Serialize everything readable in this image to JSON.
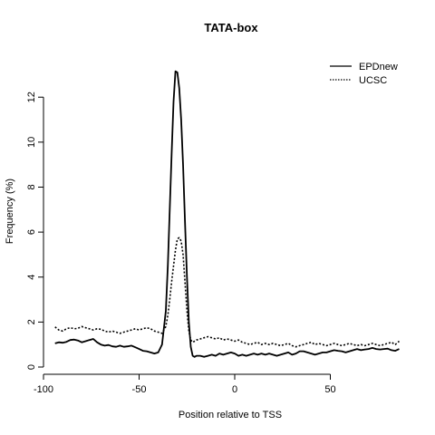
{
  "chart_data": {
    "type": "line",
    "title": "TATA-box",
    "xlabel": "Position relative to TSS",
    "ylabel": "Frequency (%)",
    "xlim": [
      -100,
      100
    ],
    "ylim": [
      0,
      13.5
    ],
    "x_ticks": [
      -100,
      -50,
      0,
      50
    ],
    "y_ticks": [
      0,
      2,
      4,
      6,
      8,
      10,
      12
    ],
    "legend_position": "top-right",
    "grid": false,
    "series": [
      {
        "name": "EPDnew",
        "style": "solid",
        "color": "#000000",
        "x": [
          -94,
          -92,
          -90,
          -88,
          -86,
          -84,
          -82,
          -80,
          -78,
          -76,
          -74,
          -72,
          -70,
          -68,
          -66,
          -64,
          -62,
          -60,
          -58,
          -56,
          -54,
          -52,
          -50,
          -48,
          -46,
          -44,
          -42,
          -40,
          -38,
          -36,
          -35,
          -34,
          -33,
          -32,
          -31,
          -30,
          -29,
          -28,
          -27,
          -26,
          -25,
          -24,
          -23,
          -22,
          -21,
          -20,
          -18,
          -16,
          -14,
          -12,
          -10,
          -8,
          -6,
          -4,
          -2,
          0,
          2,
          4,
          6,
          8,
          10,
          12,
          14,
          16,
          18,
          20,
          22,
          24,
          26,
          28,
          30,
          32,
          34,
          36,
          38,
          40,
          42,
          44,
          46,
          48,
          50,
          52,
          54,
          56,
          58,
          60,
          62,
          64,
          66,
          68,
          70,
          72,
          74,
          76,
          78,
          80,
          82,
          84,
          86
        ],
        "y": [
          1.05,
          1.1,
          1.08,
          1.12,
          1.2,
          1.22,
          1.18,
          1.1,
          1.15,
          1.2,
          1.25,
          1.1,
          1.0,
          0.95,
          0.98,
          0.92,
          0.9,
          0.95,
          0.9,
          0.92,
          0.95,
          0.88,
          0.8,
          0.72,
          0.7,
          0.65,
          0.6,
          0.65,
          1.0,
          2.5,
          4.5,
          7.0,
          9.5,
          11.8,
          13.15,
          13.1,
          12.4,
          11.0,
          9.0,
          6.5,
          4.0,
          2.0,
          0.9,
          0.5,
          0.45,
          0.5,
          0.5,
          0.45,
          0.5,
          0.55,
          0.5,
          0.6,
          0.55,
          0.6,
          0.65,
          0.6,
          0.5,
          0.55,
          0.5,
          0.55,
          0.6,
          0.55,
          0.6,
          0.55,
          0.6,
          0.55,
          0.5,
          0.55,
          0.6,
          0.65,
          0.55,
          0.6,
          0.7,
          0.7,
          0.65,
          0.6,
          0.55,
          0.6,
          0.65,
          0.65,
          0.7,
          0.75,
          0.72,
          0.7,
          0.65,
          0.7,
          0.75,
          0.8,
          0.75,
          0.78,
          0.8,
          0.85,
          0.8,
          0.78,
          0.8,
          0.82,
          0.75,
          0.72,
          0.8
        ]
      },
      {
        "name": "UCSC",
        "style": "dotted",
        "color": "#000000",
        "x": [
          -94,
          -92,
          -90,
          -88,
          -86,
          -84,
          -82,
          -80,
          -78,
          -76,
          -74,
          -72,
          -70,
          -68,
          -66,
          -64,
          -62,
          -60,
          -58,
          -56,
          -54,
          -52,
          -50,
          -48,
          -46,
          -44,
          -42,
          -40,
          -38,
          -36,
          -35,
          -34,
          -33,
          -32,
          -31,
          -30,
          -29,
          -28,
          -27,
          -26,
          -25,
          -24,
          -23,
          -22,
          -21,
          -20,
          -18,
          -16,
          -14,
          -12,
          -10,
          -8,
          -6,
          -4,
          -2,
          0,
          2,
          4,
          6,
          8,
          10,
          12,
          14,
          16,
          18,
          20,
          22,
          24,
          26,
          28,
          30,
          32,
          34,
          36,
          38,
          40,
          42,
          44,
          46,
          48,
          50,
          52,
          54,
          56,
          58,
          60,
          62,
          64,
          66,
          68,
          70,
          72,
          74,
          76,
          78,
          80,
          82,
          84,
          86
        ],
        "y": [
          1.78,
          1.65,
          1.6,
          1.7,
          1.75,
          1.7,
          1.72,
          1.8,
          1.75,
          1.7,
          1.65,
          1.7,
          1.68,
          1.6,
          1.55,
          1.6,
          1.55,
          1.5,
          1.55,
          1.6,
          1.65,
          1.7,
          1.65,
          1.7,
          1.75,
          1.7,
          1.6,
          1.55,
          1.5,
          1.8,
          2.3,
          3.0,
          3.8,
          4.5,
          5.2,
          5.7,
          5.75,
          5.6,
          5.0,
          3.8,
          2.5,
          1.6,
          1.2,
          1.1,
          1.15,
          1.2,
          1.25,
          1.3,
          1.35,
          1.3,
          1.25,
          1.3,
          1.2,
          1.25,
          1.2,
          1.15,
          1.2,
          1.1,
          1.05,
          1.0,
          1.05,
          1.1,
          1.0,
          1.05,
          1.0,
          1.05,
          1.0,
          0.95,
          1.0,
          1.05,
          0.95,
          0.9,
          0.95,
          1.0,
          1.05,
          1.1,
          1.0,
          1.05,
          1.0,
          0.95,
          1.0,
          1.05,
          1.0,
          0.95,
          1.0,
          1.05,
          1.0,
          0.95,
          1.0,
          0.95,
          1.0,
          1.05,
          1.0,
          0.95,
          1.0,
          1.05,
          1.1,
          1.0,
          1.15
        ]
      }
    ]
  }
}
